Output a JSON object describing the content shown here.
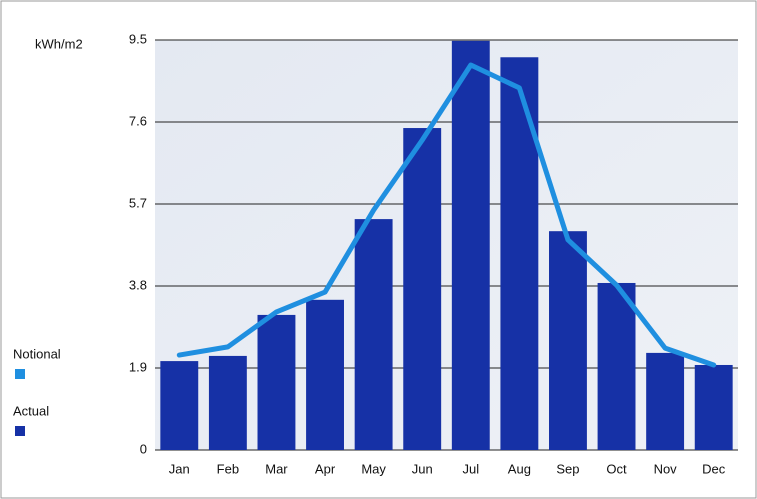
{
  "chart_data": {
    "type": "bar",
    "y_label": "kWh/m2",
    "categories": [
      "Jan",
      "Feb",
      "Mar",
      "Apr",
      "May",
      "Jun",
      "Jul",
      "Aug",
      "Sep",
      "Oct",
      "Nov",
      "Dec"
    ],
    "series": [
      {
        "name": "Notional",
        "type": "line",
        "color": "#1f8fe0",
        "values": [
          2.2,
          2.39,
          3.2,
          3.66,
          5.56,
          7.18,
          8.92,
          8.39,
          4.87,
          3.82,
          2.36,
          1.97
        ]
      },
      {
        "name": "Actual",
        "type": "bar",
        "color": "#1631a6",
        "values": [
          2.06,
          2.18,
          3.13,
          3.48,
          5.35,
          7.46,
          9.48,
          9.1,
          5.07,
          3.87,
          2.25,
          1.97
        ]
      }
    ],
    "ylim": [
      0,
      9.5
    ],
    "yticks": [
      0,
      1.9,
      3.8,
      5.7,
      7.6,
      9.5
    ],
    "grid": true
  }
}
